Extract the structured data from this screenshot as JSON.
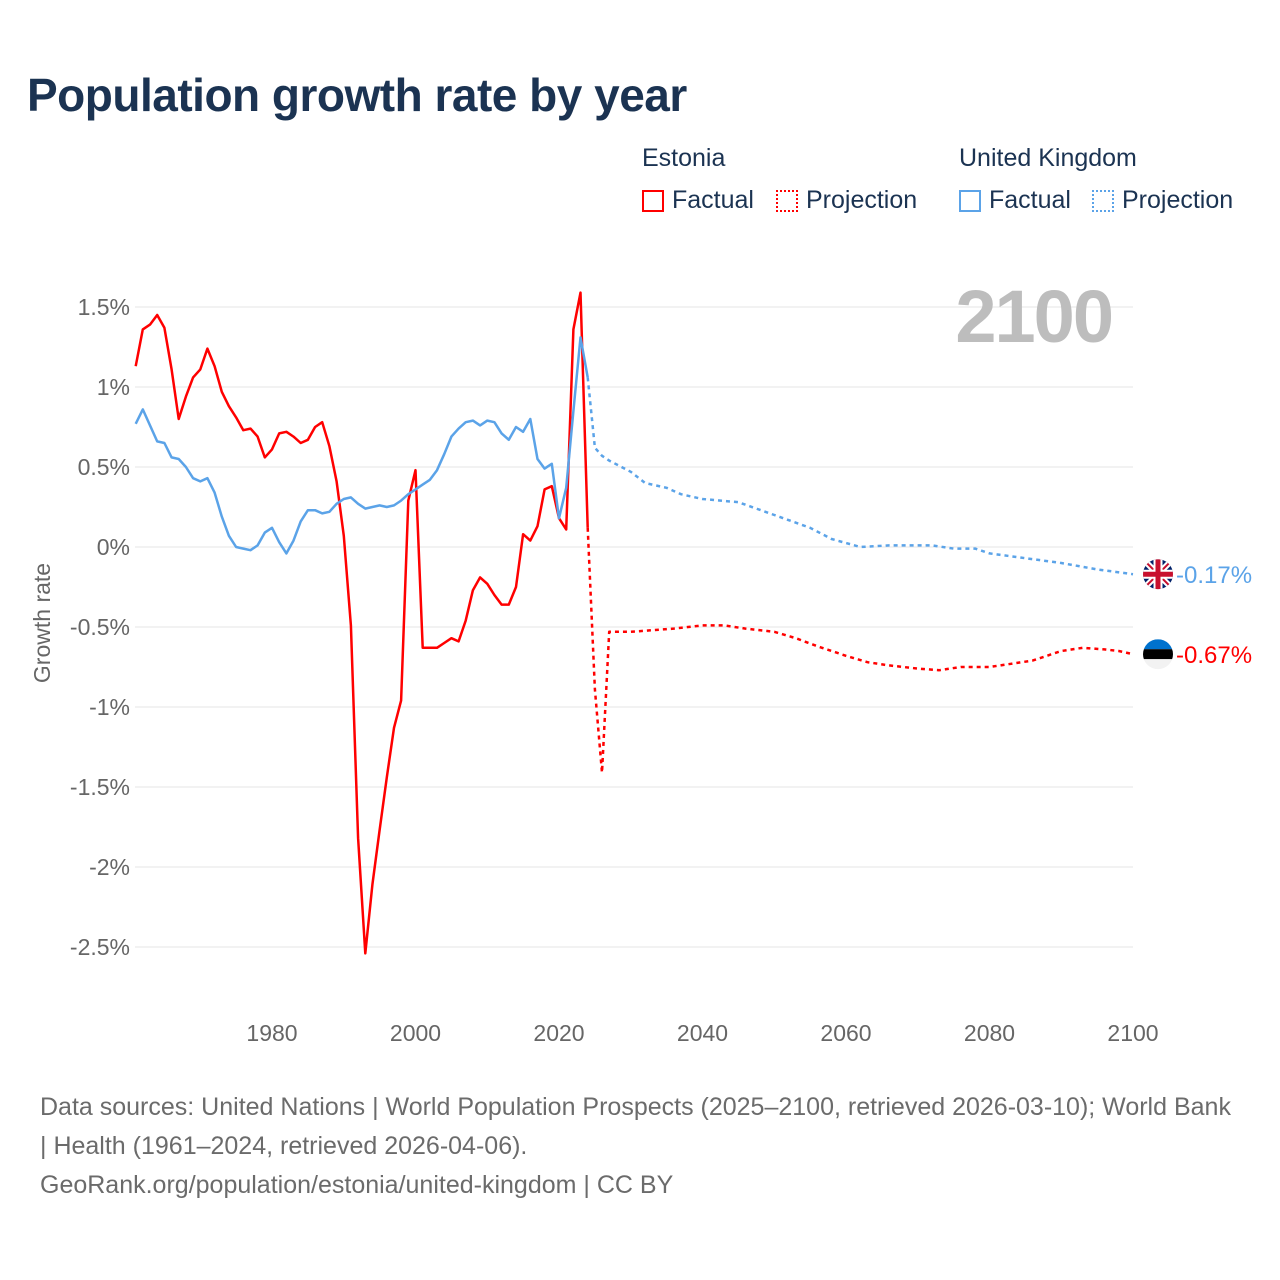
{
  "title": "Population growth rate by year",
  "legend": {
    "groups": [
      {
        "name": "Estonia",
        "factual": "Factual",
        "projection": "Projection",
        "color": "#ff0000"
      },
      {
        "name": "United Kingdom",
        "factual": "Factual",
        "projection": "Projection",
        "color": "#5ba3e8"
      }
    ]
  },
  "year_display": "2100",
  "chart_data": {
    "type": "line",
    "title": "Population growth rate by year",
    "xlabel": "",
    "ylabel": "Growth rate",
    "xlim": [
      1961,
      2100
    ],
    "ylim": [
      -2.8,
      1.6
    ],
    "x_ticks": [
      1980,
      2000,
      2020,
      2040,
      2060,
      2080,
      2100
    ],
    "x_tick_labels": [
      "1980",
      "2000",
      "2020",
      "2040",
      "2060",
      "2080",
      "2100"
    ],
    "y_ticks": [
      1.5,
      1,
      0.5,
      0,
      -0.5,
      -1,
      -1.5,
      -2,
      -2.5
    ],
    "y_tick_labels": [
      "1.5%",
      "1%",
      "0.5%",
      "0%",
      "-0.5%",
      "-1%",
      "-1.5%",
      "-2%",
      "-2.5%"
    ],
    "grid": true,
    "series": [
      {
        "name": "Estonia Factual",
        "country": "Estonia",
        "kind": "factual",
        "color": "#ff0000",
        "x": [
          1961,
          1962,
          1963,
          1964,
          1965,
          1966,
          1967,
          1968,
          1969,
          1970,
          1971,
          1972,
          1973,
          1974,
          1975,
          1976,
          1977,
          1978,
          1979,
          1980,
          1981,
          1982,
          1983,
          1984,
          1985,
          1986,
          1987,
          1988,
          1989,
          1990,
          1991,
          1992,
          1993,
          1994,
          1995,
          1996,
          1997,
          1998,
          1999,
          2000,
          2001,
          2002,
          2003,
          2004,
          2005,
          2006,
          2007,
          2008,
          2009,
          2010,
          2011,
          2012,
          2013,
          2014,
          2015,
          2016,
          2017,
          2018,
          2019,
          2020,
          2021,
          2022,
          2023,
          2024
        ],
        "y": [
          1.13,
          1.36,
          1.39,
          1.45,
          1.37,
          1.11,
          0.8,
          0.94,
          1.06,
          1.11,
          1.24,
          1.13,
          0.97,
          0.88,
          0.81,
          0.73,
          0.74,
          0.69,
          0.56,
          0.61,
          0.71,
          0.72,
          0.69,
          0.65,
          0.67,
          0.75,
          0.78,
          0.63,
          0.41,
          0.07,
          -0.49,
          -1.82,
          -2.54,
          -2.11,
          -1.77,
          -1.44,
          -1.13,
          -0.96,
          0.29,
          0.48,
          -0.63,
          -0.63,
          -0.63,
          -0.6,
          -0.57,
          -0.59,
          -0.46,
          -0.27,
          -0.19,
          -0.23,
          -0.3,
          -0.36,
          -0.36,
          -0.25,
          0.08,
          0.04,
          0.13,
          0.36,
          0.38,
          0.18,
          0.11,
          1.36,
          1.59,
          0.12
        ]
      },
      {
        "name": "Estonia Projection",
        "country": "Estonia",
        "kind": "projection",
        "color": "#ff0000",
        "x": [
          2024,
          2025,
          2026,
          2027,
          2030,
          2033,
          2036,
          2040,
          2043,
          2046,
          2050,
          2053,
          2056,
          2060,
          2063,
          2066,
          2070,
          2073,
          2076,
          2080,
          2083,
          2086,
          2090,
          2093,
          2096,
          2098,
          2100
        ],
        "y": [
          0.12,
          -0.89,
          -1.41,
          -0.53,
          -0.53,
          -0.52,
          -0.51,
          -0.49,
          -0.49,
          -0.51,
          -0.53,
          -0.57,
          -0.62,
          -0.68,
          -0.72,
          -0.74,
          -0.76,
          -0.77,
          -0.75,
          -0.75,
          -0.73,
          -0.71,
          -0.65,
          -0.63,
          -0.64,
          -0.65,
          -0.67
        ],
        "end_label": "-0.67%"
      },
      {
        "name": "United Kingdom Factual",
        "country": "United Kingdom",
        "kind": "factual",
        "color": "#5ba3e8",
        "x": [
          1961,
          1962,
          1963,
          1964,
          1965,
          1966,
          1967,
          1968,
          1969,
          1970,
          1971,
          1972,
          1973,
          1974,
          1975,
          1976,
          1977,
          1978,
          1979,
          1980,
          1981,
          1982,
          1983,
          1984,
          1985,
          1986,
          1987,
          1988,
          1989,
          1990,
          1991,
          1992,
          1993,
          1994,
          1995,
          1996,
          1997,
          1998,
          1999,
          2000,
          2001,
          2002,
          2003,
          2004,
          2005,
          2006,
          2007,
          2008,
          2009,
          2010,
          2011,
          2012,
          2013,
          2014,
          2015,
          2016,
          2017,
          2018,
          2019,
          2020,
          2021,
          2022,
          2023,
          2024
        ],
        "y": [
          0.77,
          0.86,
          0.76,
          0.66,
          0.65,
          0.56,
          0.55,
          0.5,
          0.43,
          0.41,
          0.43,
          0.34,
          0.19,
          0.07,
          0.0,
          -0.01,
          -0.02,
          0.01,
          0.09,
          0.12,
          0.03,
          -0.04,
          0.04,
          0.16,
          0.23,
          0.23,
          0.21,
          0.22,
          0.27,
          0.3,
          0.31,
          0.27,
          0.24,
          0.25,
          0.26,
          0.25,
          0.26,
          0.29,
          0.33,
          0.36,
          0.39,
          0.42,
          0.48,
          0.58,
          0.69,
          0.74,
          0.78,
          0.79,
          0.76,
          0.79,
          0.78,
          0.71,
          0.67,
          0.75,
          0.72,
          0.8,
          0.55,
          0.49,
          0.52,
          0.18,
          0.37,
          0.85,
          1.31,
          1.06
        ]
      },
      {
        "name": "United Kingdom Projection",
        "country": "United Kingdom",
        "kind": "projection",
        "color": "#5ba3e8",
        "x": [
          2024,
          2025,
          2026,
          2027,
          2030,
          2032,
          2035,
          2037,
          2040,
          2045,
          2050,
          2055,
          2058,
          2062,
          2066,
          2070,
          2072,
          2075,
          2078,
          2080,
          2085,
          2090,
          2095,
          2100
        ],
        "y": [
          1.06,
          0.62,
          0.57,
          0.54,
          0.47,
          0.4,
          0.37,
          0.33,
          0.3,
          0.28,
          0.2,
          0.12,
          0.05,
          0.0,
          0.01,
          0.01,
          0.01,
          -0.01,
          -0.01,
          -0.04,
          -0.07,
          -0.1,
          -0.14,
          -0.17
        ],
        "end_label": "-0.17%"
      }
    ]
  },
  "footer": {
    "sources": "Data sources: United Nations | World Population Prospects (2025–2100, retrieved 2026-03-10); World Bank | Health (1961–2024, retrieved 2026-04-06).",
    "link": "GeoRank.org/population/estonia/united-kingdom | CC BY"
  }
}
